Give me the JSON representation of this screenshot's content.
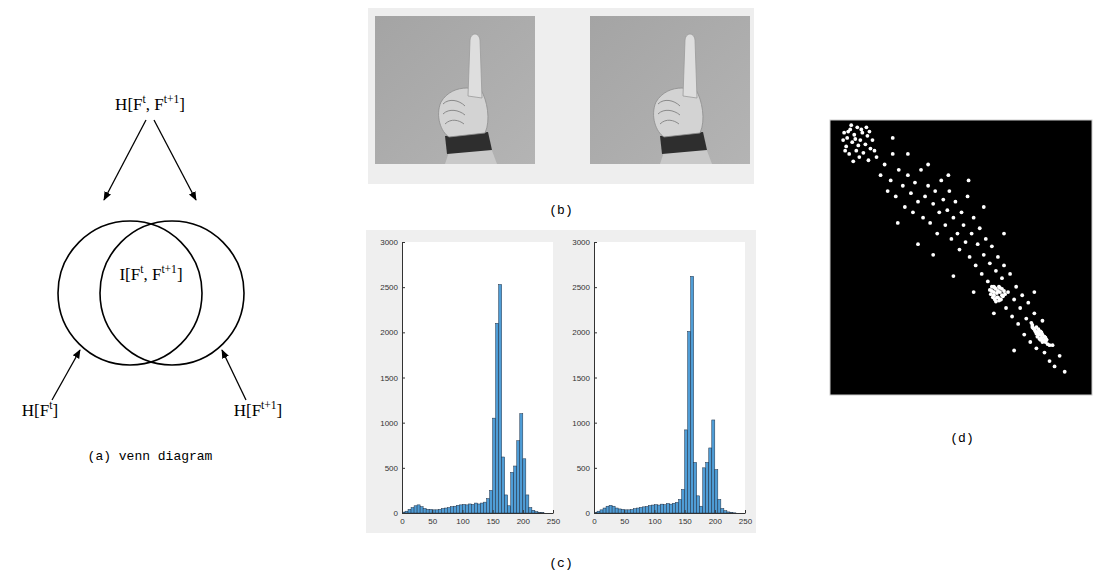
{
  "venn": {
    "union_label": [
      {
        "text": "H[F"
      },
      {
        "superscript": "t"
      },
      {
        "text": ", F"
      },
      {
        "superscript": "t+1"
      },
      {
        "text": "]"
      }
    ],
    "intersection_label": [
      {
        "text": "I[F"
      },
      {
        "superscript": "t"
      },
      {
        "text": ", F"
      },
      {
        "superscript": "t+1"
      },
      {
        "text": "]"
      }
    ],
    "left_label": [
      {
        "text": "H[F"
      },
      {
        "superscript": "t"
      },
      {
        "text": "]"
      }
    ],
    "right_label": [
      {
        "text": "H[F"
      },
      {
        "superscript": "t+1"
      },
      {
        "text": "]"
      }
    ],
    "caption": "(a) venn diagram"
  },
  "captions": {
    "b": "(b)",
    "c": "(c)",
    "d": "(d)"
  },
  "chart_data": [
    {
      "type": "histogram",
      "color": "#4f9dd6",
      "grid": false,
      "bins": [
        0,
        5,
        10,
        15,
        20,
        25,
        30,
        35,
        40,
        45,
        50,
        55,
        60,
        65,
        70,
        75,
        80,
        85,
        90,
        95,
        100,
        105,
        110,
        115,
        120,
        125,
        130,
        135,
        140,
        145,
        150,
        155,
        160,
        165,
        170,
        175,
        180,
        185,
        190,
        195,
        200,
        205,
        210,
        215,
        220,
        225,
        230,
        235
      ],
      "values": [
        10,
        20,
        40,
        60,
        80,
        90,
        70,
        50,
        40,
        40,
        35,
        35,
        40,
        50,
        55,
        60,
        70,
        75,
        85,
        90,
        95,
        90,
        100,
        95,
        110,
        100,
        110,
        120,
        160,
        250,
        1050,
        2100,
        2530,
        620,
        200,
        80,
        450,
        520,
        800,
        1100,
        600,
        200,
        60,
        30,
        15,
        8,
        3
      ],
      "xlim": [
        0,
        250
      ],
      "xticks": [
        0,
        50,
        100,
        150,
        200,
        250
      ],
      "ylim": [
        0,
        3000
      ],
      "yticks": [
        0,
        500,
        1000,
        1500,
        2000,
        2500,
        3000
      ]
    },
    {
      "type": "histogram",
      "color": "#4f9dd6",
      "grid": false,
      "bins": [
        0,
        5,
        10,
        15,
        20,
        25,
        30,
        35,
        40,
        45,
        50,
        55,
        60,
        65,
        70,
        75,
        80,
        85,
        90,
        95,
        100,
        105,
        110,
        115,
        120,
        125,
        130,
        135,
        140,
        145,
        150,
        155,
        160,
        165,
        170,
        175,
        180,
        185,
        190,
        195,
        200,
        205,
        210,
        215,
        220,
        225,
        230,
        235
      ],
      "values": [
        8,
        20,
        35,
        55,
        75,
        85,
        75,
        55,
        45,
        40,
        35,
        35,
        38,
        48,
        55,
        62,
        68,
        72,
        82,
        88,
        92,
        88,
        98,
        92,
        105,
        98,
        108,
        118,
        150,
        260,
        920,
        2010,
        2620,
        560,
        190,
        75,
        500,
        560,
        720,
        1030,
        480,
        150,
        50,
        25,
        12,
        6,
        2
      ],
      "xlim": [
        0,
        250
      ],
      "xticks": [
        0,
        50,
        100,
        150,
        200,
        250
      ],
      "ylim": [
        0,
        3000
      ],
      "yticks": [
        0,
        500,
        1000,
        1500,
        2000,
        2500,
        3000
      ]
    },
    {
      "type": "scatter",
      "color": "#ffffff",
      "tick_labels": false,
      "xlim": [
        0,
        255
      ],
      "ylim": [
        0,
        255
      ],
      "x": [
        12,
        15,
        18,
        20,
        22,
        25,
        14,
        28,
        30,
        24,
        17,
        33,
        35,
        27,
        38,
        21,
        40,
        11,
        19,
        26,
        31,
        36,
        42,
        16,
        23,
        29,
        34,
        44,
        13,
        37,
        48,
        52,
        55,
        58,
        60,
        63,
        66,
        70,
        72,
        75,
        78,
        80,
        82,
        85,
        88,
        90,
        92,
        95,
        97,
        100,
        102,
        104,
        106,
        108,
        110,
        112,
        114,
        116,
        118,
        120,
        122,
        124,
        126,
        128,
        130,
        132,
        134,
        136,
        138,
        140,
        142,
        144,
        146,
        148,
        150,
        152,
        154,
        156,
        158,
        160,
        162,
        164,
        166,
        168,
        170,
        172,
        174,
        176,
        178,
        180,
        182,
        184,
        186,
        188,
        190,
        192,
        194,
        196,
        198,
        200,
        202,
        205,
        208,
        210,
        212,
        215,
        218,
        220,
        225,
        230,
        85,
        100,
        120,
        140,
        160,
        75,
        95,
        115,
        135,
        65,
        180,
        200,
        150,
        170,
        60,
        158,
        160,
        162,
        164,
        166,
        168,
        161,
        165,
        159,
        163,
        167,
        170,
        157,
        162,
        166,
        164,
        160,
        168,
        163,
        161,
        169,
        156,
        165,
        171,
        158,
        198,
        200,
        202,
        203,
        205,
        207,
        209,
        211,
        201,
        204,
        206,
        208,
        210,
        212,
        199,
        203,
        206,
        213,
        197,
        208,
        202,
        207,
        211,
        205,
        215
      ],
      "y": [
        245,
        240,
        248,
        236,
        243,
        250,
        232,
        238,
        245,
        228,
        225,
        234,
        242,
        222,
        230,
        218,
        238,
        238,
        252,
        233,
        226,
        219,
        228,
        246,
        239,
        248,
        250,
        222,
        228,
        246,
        205,
        215,
        190,
        200,
        225,
        185,
        210,
        195,
        175,
        205,
        188,
        170,
        198,
        180,
        210,
        165,
        185,
        195,
        160,
        178,
        190,
        150,
        170,
        200,
        182,
        158,
        172,
        190,
        145,
        165,
        180,
        150,
        135,
        170,
        158,
        142,
        185,
        128,
        150,
        165,
        120,
        140,
        155,
        112,
        130,
        145,
        105,
        122,
        138,
        100,
        115,
        128,
        88,
        108,
        120,
        80,
        95,
        112,
        72,
        88,
        100,
        65,
        80,
        92,
        55,
        70,
        85,
        48,
        62,
        75,
        42,
        55,
        68,
        38,
        50,
        30,
        45,
        25,
        35,
        20,
        140,
        130,
        110,
        95,
        75,
        225,
        215,
        205,
        200,
        160,
        40,
        95,
        175,
        150,
        240,
        96,
        92,
        98,
        90,
        95,
        92,
        88,
        100,
        90,
        94,
        88,
        96,
        93,
        86,
        99,
        96,
        95,
        98,
        90,
        99,
        91,
        97,
        87,
        93,
        100,
        64,
        60,
        62,
        57,
        55,
        52,
        50,
        48,
        58,
        60,
        58,
        55,
        53,
        50,
        61,
        53,
        50,
        46,
        66,
        48,
        56,
        57,
        52,
        51,
        45
      ]
    }
  ]
}
